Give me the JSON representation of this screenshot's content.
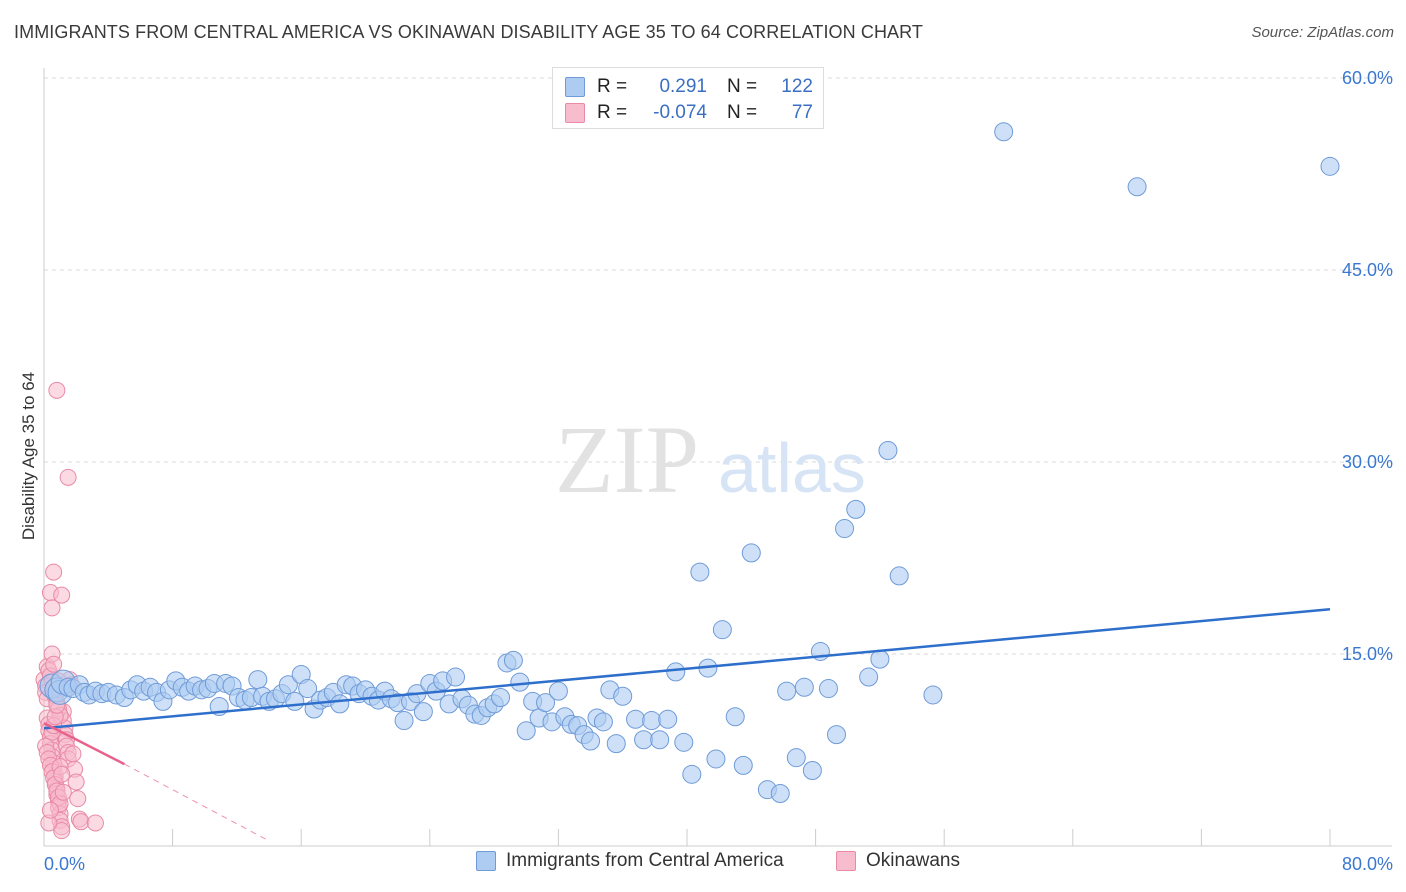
{
  "header": {
    "title": "IMMIGRANTS FROM CENTRAL AMERICA VS OKINAWAN DISABILITY AGE 35 TO 64 CORRELATION CHART",
    "source": "Source: ZipAtlas.com"
  },
  "watermark": {
    "zip": "ZIP",
    "atlas": "atlas"
  },
  "legend_top": {
    "rows": [
      {
        "r_label": "R =",
        "r_value": "0.291",
        "n_label": "N =",
        "n_value": "122"
      },
      {
        "r_label": "R =",
        "r_value": "-0.074",
        "n_label": "N =",
        "n_value": "77"
      }
    ]
  },
  "legend_bottom": {
    "items": [
      {
        "label": "Immigrants from Central America"
      },
      {
        "label": "Okinawans"
      }
    ]
  },
  "colors": {
    "blue_fill": "#aecbf2",
    "blue_stroke": "#6f9bd8",
    "blue_line": "#2f6fcc",
    "pink_fill": "#f7bccd",
    "pink_stroke": "#e98aa6",
    "pink_line": "#e8638c",
    "tick_text": "#3a78d0",
    "grid": "#d9d9d9"
  },
  "chart_data": {
    "type": "scatter",
    "title": "IMMIGRANTS FROM CENTRAL AMERICA VS OKINAWAN DISABILITY AGE 35 TO 64 CORRELATION CHART",
    "xlabel": "",
    "ylabel": "Disability Age 35 to 64",
    "xlim": [
      0,
      80
    ],
    "ylim": [
      0,
      60
    ],
    "x_tick_labels": [
      "0.0%",
      "80.0%"
    ],
    "y_ticks": [
      15,
      30,
      45,
      60
    ],
    "y_tick_labels": [
      "15.0%",
      "30.0%",
      "45.0%",
      "60.0%"
    ],
    "grid": true,
    "legend_position": "top-center",
    "series": [
      {
        "name": "Immigrants from Central America",
        "color": "#6f9bd8",
        "trend": {
          "x": [
            0,
            80
          ],
          "y": [
            9.2,
            18.5
          ]
        },
        "points": [
          [
            0.5,
            12.5
          ],
          [
            0.8,
            12.2
          ],
          [
            1.0,
            12.0
          ],
          [
            1.2,
            12.8
          ],
          [
            1.5,
            12.4
          ],
          [
            1.8,
            12.3
          ],
          [
            2.2,
            12.6
          ],
          [
            2.5,
            12.0
          ],
          [
            2.8,
            11.8
          ],
          [
            3.2,
            12.1
          ],
          [
            3.6,
            11.9
          ],
          [
            4.0,
            12.0
          ],
          [
            4.5,
            11.8
          ],
          [
            5.0,
            11.6
          ],
          [
            5.4,
            12.2
          ],
          [
            5.8,
            12.6
          ],
          [
            6.2,
            12.1
          ],
          [
            6.6,
            12.4
          ],
          [
            7.0,
            12.0
          ],
          [
            7.4,
            11.3
          ],
          [
            7.8,
            12.2
          ],
          [
            8.2,
            12.9
          ],
          [
            8.6,
            12.4
          ],
          [
            9.0,
            12.1
          ],
          [
            9.4,
            12.5
          ],
          [
            9.8,
            12.2
          ],
          [
            10.2,
            12.3
          ],
          [
            10.6,
            12.7
          ],
          [
            10.9,
            10.9
          ],
          [
            11.3,
            12.7
          ],
          [
            11.7,
            12.5
          ],
          [
            12.1,
            11.6
          ],
          [
            12.5,
            11.4
          ],
          [
            12.9,
            11.6
          ],
          [
            13.3,
            13.0
          ],
          [
            13.6,
            11.7
          ],
          [
            14.0,
            11.3
          ],
          [
            14.4,
            11.5
          ],
          [
            14.8,
            11.9
          ],
          [
            15.2,
            12.6
          ],
          [
            15.6,
            11.3
          ],
          [
            16.0,
            13.4
          ],
          [
            16.4,
            12.3
          ],
          [
            16.8,
            10.7
          ],
          [
            17.2,
            11.4
          ],
          [
            17.6,
            11.6
          ],
          [
            18.0,
            12.0
          ],
          [
            18.4,
            11.1
          ],
          [
            18.8,
            12.6
          ],
          [
            19.2,
            12.5
          ],
          [
            19.6,
            11.9
          ],
          [
            20.0,
            12.2
          ],
          [
            20.4,
            11.7
          ],
          [
            20.8,
            11.4
          ],
          [
            21.2,
            12.1
          ],
          [
            21.6,
            11.5
          ],
          [
            22.0,
            11.2
          ],
          [
            22.4,
            9.8
          ],
          [
            22.8,
            11.3
          ],
          [
            23.2,
            11.9
          ],
          [
            23.6,
            10.5
          ],
          [
            24.0,
            12.7
          ],
          [
            24.4,
            12.1
          ],
          [
            24.8,
            12.9
          ],
          [
            25.2,
            11.1
          ],
          [
            25.6,
            13.2
          ],
          [
            26.0,
            11.5
          ],
          [
            26.4,
            11.0
          ],
          [
            26.8,
            10.3
          ],
          [
            27.2,
            10.2
          ],
          [
            27.6,
            10.8
          ],
          [
            28.0,
            11.1
          ],
          [
            28.4,
            11.6
          ],
          [
            28.8,
            14.3
          ],
          [
            29.2,
            14.5
          ],
          [
            29.6,
            12.8
          ],
          [
            30.0,
            9.0
          ],
          [
            30.4,
            11.3
          ],
          [
            30.8,
            10.0
          ],
          [
            31.2,
            11.2
          ],
          [
            31.6,
            9.7
          ],
          [
            32.0,
            12.1
          ],
          [
            32.4,
            10.1
          ],
          [
            32.8,
            9.5
          ],
          [
            33.2,
            9.4
          ],
          [
            33.6,
            8.7
          ],
          [
            34.0,
            8.2
          ],
          [
            34.4,
            10.0
          ],
          [
            34.8,
            9.7
          ],
          [
            35.2,
            12.2
          ],
          [
            35.6,
            8.0
          ],
          [
            36.0,
            11.7
          ],
          [
            36.8,
            9.9
          ],
          [
            37.3,
            8.3
          ],
          [
            37.8,
            9.8
          ],
          [
            38.3,
            8.3
          ],
          [
            38.8,
            9.9
          ],
          [
            39.3,
            13.6
          ],
          [
            39.8,
            8.1
          ],
          [
            40.3,
            5.6
          ],
          [
            40.8,
            21.4
          ],
          [
            41.3,
            13.9
          ],
          [
            41.8,
            6.8
          ],
          [
            42.2,
            16.9
          ],
          [
            43.0,
            10.1
          ],
          [
            43.5,
            6.3
          ],
          [
            44.0,
            22.9
          ],
          [
            45.0,
            4.4
          ],
          [
            45.8,
            4.1
          ],
          [
            46.2,
            12.1
          ],
          [
            46.8,
            6.9
          ],
          [
            47.3,
            12.4
          ],
          [
            47.8,
            5.9
          ],
          [
            48.3,
            15.2
          ],
          [
            48.8,
            12.3
          ],
          [
            49.3,
            8.7
          ],
          [
            49.8,
            24.8
          ],
          [
            50.5,
            26.3
          ],
          [
            51.3,
            13.2
          ],
          [
            52.0,
            14.6
          ],
          [
            52.5,
            30.9
          ],
          [
            53.2,
            21.1
          ],
          [
            55.3,
            11.8
          ],
          [
            59.7,
            55.8
          ],
          [
            68.0,
            51.5
          ],
          [
            80.0,
            53.1
          ]
        ]
      },
      {
        "name": "Okinawans",
        "color": "#e98aa6",
        "trend": {
          "x": [
            0.0,
            5.0
          ],
          "y": [
            9.6,
            6.4
          ]
        },
        "trend_dashed": {
          "x": [
            5.0,
            14.0
          ],
          "y": [
            6.4,
            0.4
          ]
        },
        "points": [
          [
            0.0,
            13.0
          ],
          [
            0.1,
            12.5
          ],
          [
            0.1,
            12.0
          ],
          [
            0.2,
            11.5
          ],
          [
            0.2,
            10.0
          ],
          [
            0.3,
            9.5
          ],
          [
            0.3,
            9.0
          ],
          [
            0.4,
            8.5
          ],
          [
            0.4,
            8.0
          ],
          [
            0.5,
            7.5
          ],
          [
            0.5,
            7.0
          ],
          [
            0.6,
            6.5
          ],
          [
            0.6,
            6.0
          ],
          [
            0.7,
            5.5
          ],
          [
            0.7,
            5.0
          ],
          [
            0.8,
            4.5
          ],
          [
            0.8,
            4.0
          ],
          [
            0.9,
            3.5
          ],
          [
            0.9,
            3.0
          ],
          [
            1.0,
            2.5
          ],
          [
            1.0,
            2.0
          ],
          [
            1.1,
            1.5
          ],
          [
            1.1,
            1.2
          ],
          [
            1.2,
            10.5
          ],
          [
            1.2,
            9.8
          ],
          [
            1.3,
            9.2
          ],
          [
            1.3,
            8.7
          ],
          [
            1.4,
            8.3
          ],
          [
            1.4,
            7.8
          ],
          [
            1.5,
            7.3
          ],
          [
            1.5,
            6.8
          ],
          [
            0.2,
            14.0
          ],
          [
            0.3,
            13.7
          ],
          [
            0.4,
            13.3
          ],
          [
            0.5,
            12.8
          ],
          [
            0.6,
            12.2
          ],
          [
            0.7,
            11.7
          ],
          [
            0.8,
            11.2
          ],
          [
            0.9,
            10.7
          ],
          [
            1.0,
            10.2
          ],
          [
            0.1,
            7.8
          ],
          [
            0.2,
            7.3
          ],
          [
            0.3,
            6.8
          ],
          [
            0.4,
            6.3
          ],
          [
            0.5,
            5.8
          ],
          [
            0.6,
            5.3
          ],
          [
            0.7,
            4.8
          ],
          [
            0.8,
            4.3
          ],
          [
            0.9,
            3.8
          ],
          [
            1.0,
            3.3
          ],
          [
            0.4,
            19.8
          ],
          [
            0.5,
            18.6
          ],
          [
            0.6,
            21.4
          ],
          [
            1.1,
            19.6
          ],
          [
            0.8,
            35.6
          ],
          [
            1.5,
            28.8
          ],
          [
            1.6,
            13.0
          ],
          [
            1.7,
            12.6
          ],
          [
            0.5,
            15.0
          ],
          [
            0.6,
            14.2
          ],
          [
            1.8,
            7.2
          ],
          [
            1.9,
            6.0
          ],
          [
            2.0,
            5.0
          ],
          [
            2.1,
            3.7
          ],
          [
            2.2,
            2.1
          ],
          [
            2.3,
            1.9
          ],
          [
            3.2,
            1.8
          ],
          [
            0.3,
            1.8
          ],
          [
            0.4,
            2.8
          ],
          [
            0.5,
            8.9
          ],
          [
            0.6,
            9.4
          ],
          [
            0.7,
            10.1
          ],
          [
            0.8,
            11.0
          ],
          [
            0.9,
            12.9
          ],
          [
            1.0,
            6.2
          ],
          [
            1.1,
            5.6
          ],
          [
            1.2,
            4.2
          ]
        ]
      }
    ]
  }
}
